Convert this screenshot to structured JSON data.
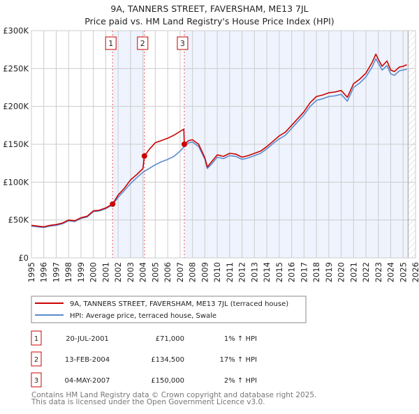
{
  "chart_data": {
    "type": "line",
    "title": "9A, TANNERS STREET, FAVERSHAM, ME13 7JL",
    "subtitle": "Price paid vs. HM Land Registry's House Price Index (HPI)",
    "xlabel": "",
    "ylabel": "",
    "xlim": [
      1995,
      2026
    ],
    "ylim": [
      0,
      300000
    ],
    "x_ticks": [
      "1995",
      "1996",
      "1997",
      "1998",
      "1999",
      "2000",
      "2001",
      "2002",
      "2003",
      "2004",
      "2005",
      "2006",
      "2007",
      "2008",
      "2009",
      "2010",
      "2011",
      "2012",
      "2013",
      "2014",
      "2015",
      "2016",
      "2017",
      "2018",
      "2019",
      "2020",
      "2021",
      "2022",
      "2023",
      "2024",
      "2025",
      "2026"
    ],
    "y_ticks": [
      {
        "value": 0,
        "label": "£0"
      },
      {
        "value": 50000,
        "label": "£50K"
      },
      {
        "value": 100000,
        "label": "£100K"
      },
      {
        "value": 150000,
        "label": "£150K"
      },
      {
        "value": 200000,
        "label": "£200K"
      },
      {
        "value": 250000,
        "label": "£250K"
      },
      {
        "value": 300000,
        "label": "£300K"
      }
    ],
    "grid": true,
    "forecast_start": 2025.4,
    "colors": {
      "property": "#cc0000",
      "hpi": "#5b8bd0",
      "shade": "#eef3fd",
      "marker_line": "#ee5555"
    },
    "series": [
      {
        "name": "9A, TANNERS STREET, FAVERSHAM, ME13 7JL (terraced house)",
        "x": [
          1995,
          1995.5,
          1996,
          1996.5,
          1997,
          1997.5,
          1998,
          1998.5,
          1999,
          1999.5,
          2000,
          2000.5,
          2001,
          2001.55,
          2002,
          2002.5,
          2003,
          2003.5,
          2004.0,
          2004.12,
          2004.5,
          2005,
          2005.5,
          2006,
          2006.5,
          2007,
          2007.3,
          2007.34,
          2007.7,
          2008,
          2008.5,
          2009,
          2009.2,
          2009.6,
          2010,
          2010.5,
          2011,
          2011.5,
          2012,
          2012.5,
          2013,
          2013.5,
          2014,
          2014.5,
          2015,
          2015.5,
          2016,
          2016.5,
          2017,
          2017.5,
          2018,
          2018.5,
          2019,
          2019.5,
          2020,
          2020.5,
          2021,
          2021.5,
          2022,
          2022.5,
          2022.8,
          2023,
          2023.3,
          2023.7,
          2024,
          2024.3,
          2024.7,
          2025,
          2025.3
        ],
        "values": [
          43000,
          42000,
          41000,
          43000,
          44000,
          46000,
          50000,
          49000,
          53000,
          55000,
          62000,
          63000,
          66000,
          71000,
          83000,
          92000,
          103000,
          110000,
          118000,
          134500,
          143000,
          152000,
          155000,
          158000,
          162000,
          167000,
          170000,
          150000,
          155000,
          156000,
          150000,
          132000,
          120000,
          128000,
          136000,
          134000,
          138000,
          137000,
          133000,
          135000,
          138000,
          141000,
          147000,
          154000,
          161000,
          166000,
          175000,
          184000,
          193000,
          205000,
          213000,
          215000,
          218000,
          219000,
          221000,
          212000,
          230000,
          236000,
          244000,
          258000,
          269000,
          262000,
          253000,
          260000,
          248000,
          246000,
          252000,
          253000,
          255000
        ]
      },
      {
        "name": "HPI: Average price, terraced house, Swale",
        "x": [
          1995,
          1995.5,
          1996,
          1996.5,
          1997,
          1997.5,
          1998,
          1998.5,
          1999,
          1999.5,
          2000,
          2000.5,
          2001,
          2001.55,
          2002,
          2002.5,
          2003,
          2003.5,
          2004.0,
          2004.5,
          2005,
          2005.5,
          2006,
          2006.5,
          2007,
          2007.34,
          2007.7,
          2008,
          2008.5,
          2009,
          2009.2,
          2009.6,
          2010,
          2010.5,
          2011,
          2011.5,
          2012,
          2012.5,
          2013,
          2013.5,
          2014,
          2014.5,
          2015,
          2015.5,
          2016,
          2016.5,
          2017,
          2017.5,
          2018,
          2018.5,
          2019,
          2019.5,
          2020,
          2020.5,
          2021,
          2021.5,
          2022,
          2022.5,
          2022.8,
          2023,
          2023.3,
          2023.7,
          2024,
          2024.3,
          2024.7,
          2025,
          2025.3
        ],
        "values": [
          42000,
          41000,
          40000,
          42000,
          43000,
          45000,
          49000,
          48000,
          52000,
          54000,
          61000,
          62000,
          65000,
          70000,
          80000,
          89000,
          98000,
          106000,
          113000,
          118000,
          123000,
          127000,
          130000,
          134000,
          141000,
          147000,
          152000,
          153000,
          147000,
          130000,
          118000,
          125000,
          133000,
          131000,
          135000,
          134000,
          130000,
          132000,
          135000,
          138000,
          144000,
          151000,
          157000,
          162000,
          171000,
          180000,
          189000,
          200000,
          208000,
          210000,
          213000,
          214000,
          216000,
          207000,
          225000,
          231000,
          239000,
          252000,
          263000,
          257000,
          248000,
          254000,
          243000,
          241000,
          247000,
          248000,
          249000
        ]
      }
    ],
    "sales": [
      {
        "label": "1",
        "x": 2001.55,
        "value": 71000,
        "date": "20-JUL-2001",
        "price": "£71,000",
        "hpi_diff": "1% ↑ HPI"
      },
      {
        "label": "2",
        "x": 2004.12,
        "value": 134500,
        "date": "13-FEB-2004",
        "price": "£134,500",
        "hpi_diff": "17% ↑ HPI"
      },
      {
        "label": "3",
        "x": 2007.34,
        "value": 150000,
        "date": "04-MAY-2007",
        "price": "£150,000",
        "hpi_diff": "2% ↑ HPI"
      }
    ],
    "legend_placement": "bottom"
  },
  "footer": {
    "line1": "Contains HM Land Registry data © Crown copyright and database right 2025.",
    "line2": "This data is licensed under the Open Government Licence v3.0."
  }
}
